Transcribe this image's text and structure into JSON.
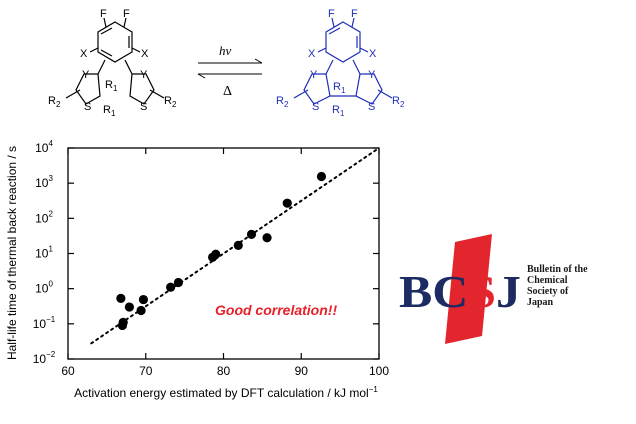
{
  "scheme": {
    "forward_label": "hν",
    "reverse_label": "Δ",
    "left_atoms": {
      "f1": "F",
      "f2": "F",
      "x1": "X",
      "x2": "X",
      "y1": "Y",
      "y2": "Y",
      "s1": "S",
      "s2": "S",
      "r1a": "R",
      "r1a_sub": "1",
      "r1b": "R",
      "r1b_sub": "1",
      "r2a": "R",
      "r2a_sub": "2",
      "r2b": "R",
      "r2b_sub": "2"
    },
    "right_atoms": {
      "f1": "F",
      "f2": "F",
      "x1": "X",
      "x2": "X",
      "y1": "Y",
      "y2": "Y",
      "s1": "S",
      "s2": "S",
      "r1a": "R",
      "r1a_sub": "1",
      "r1b": "R",
      "r1b_sub": "1",
      "r2a": "R",
      "r2a_sub": "2",
      "r2b": "R",
      "r2b_sub": "2"
    },
    "colors": {
      "open_form": "#000000",
      "closed_form": "#1f2fb8"
    }
  },
  "chart_data": {
    "type": "scatter",
    "title": "",
    "xlabel": "Activation energy estimated by DFT calculation / kJ mol",
    "xlabel_sup": "−1",
    "ylabel": "Half-life time of thermal back reaction / s",
    "xlim": [
      60,
      100
    ],
    "ylim_log10": [
      -2,
      4
    ],
    "yscale": "log",
    "x_ticks": [
      60,
      70,
      80,
      90,
      100
    ],
    "y_ticks": [
      {
        "base": "10",
        "exp": "4",
        "value": 4
      },
      {
        "base": "10",
        "exp": "3",
        "value": 3
      },
      {
        "base": "10",
        "exp": "2",
        "value": 2
      },
      {
        "base": "10",
        "exp": "1",
        "value": 1
      },
      {
        "base": "10",
        "exp": "0",
        "value": 0
      },
      {
        "base": "10",
        "exp": "−1",
        "value": -1
      },
      {
        "base": "10",
        "exp": "−2",
        "value": -2
      }
    ],
    "points": [
      {
        "x": 66.8,
        "y": 0.53
      },
      {
        "x": 67.1,
        "y": 0.11
      },
      {
        "x": 67.0,
        "y": 0.09
      },
      {
        "x": 67.9,
        "y": 0.3
      },
      {
        "x": 69.4,
        "y": 0.24
      },
      {
        "x": 69.7,
        "y": 0.49
      },
      {
        "x": 73.2,
        "y": 1.1
      },
      {
        "x": 74.2,
        "y": 1.5
      },
      {
        "x": 78.6,
        "y": 7.8
      },
      {
        "x": 79.0,
        "y": 9.5
      },
      {
        "x": 81.9,
        "y": 17
      },
      {
        "x": 83.6,
        "y": 35
      },
      {
        "x": 85.6,
        "y": 28
      },
      {
        "x": 88.2,
        "y": 270
      },
      {
        "x": 92.6,
        "y": 1550
      }
    ],
    "trendline": {
      "style": "dotted",
      "x": [
        63,
        100
      ],
      "y": [
        0.028,
        10000
      ]
    },
    "annotation": {
      "text": "Good correlation!!",
      "color": "#e8202a"
    },
    "marker_color": "#000000",
    "grid": false
  },
  "logo": {
    "mark": "BCSJ",
    "letter_b": "B",
    "letter_c": "C",
    "letter_s": "S",
    "letter_j": "J",
    "caption_lines": [
      "Bulletin of the",
      "Chemical",
      "Society of",
      "Japan"
    ],
    "colors": {
      "navy": "#1c2b62",
      "red": "#e3262d"
    }
  }
}
